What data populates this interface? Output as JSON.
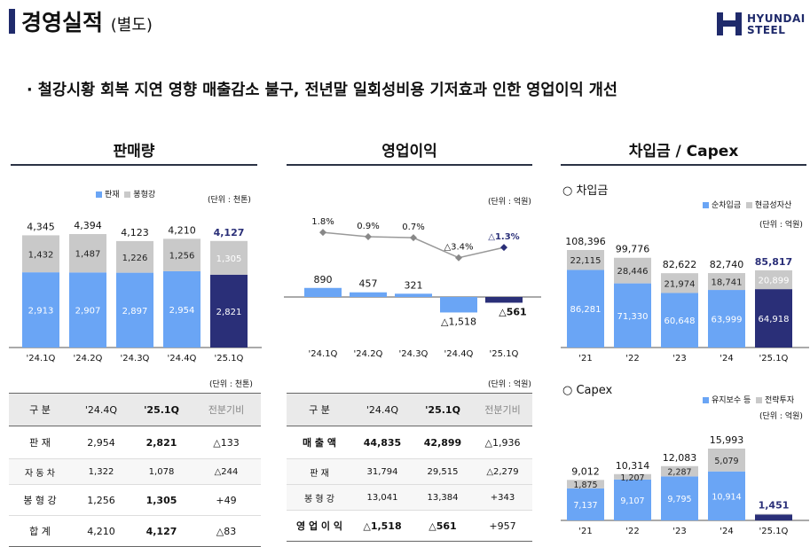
{
  "header": {
    "title": "경영실적",
    "subtitle": "(별도)",
    "logo_line1": "HYUNDAI",
    "logo_line2": "STEEL"
  },
  "headline": "· 철강시황 회복 지연 영향 매출감소 불구, 전년말 일회성비용 기저효과 인한 영업이익 개선",
  "colors": {
    "light_blue": "#6aa5f5",
    "gray": "#c9c9c9",
    "navy": "#2a2f78",
    "title_navy": "#1f2a6b"
  },
  "sales": {
    "title": "판매량",
    "legend": [
      "판재",
      "봉형강"
    ],
    "unit": "(단위 : 천톤)",
    "chart_data": {
      "type": "bar",
      "categories": [
        "'24.1Q",
        "'24.2Q",
        "'24.3Q",
        "'24.4Q",
        "'25.1Q"
      ],
      "series": [
        {
          "name": "판재",
          "values": [
            2913,
            2907,
            2897,
            2954,
            2821
          ]
        },
        {
          "name": "봉형강",
          "values": [
            1432,
            1487,
            1226,
            1256,
            1305
          ]
        }
      ],
      "totals": [
        4345,
        4394,
        4123,
        4210,
        4127
      ],
      "seg_labels": [
        [
          "2,913",
          "2,907",
          "2,897",
          "2,954",
          "2,821"
        ],
        [
          "1,432",
          "1,487",
          "1,226",
          "1,256",
          "1,305"
        ]
      ],
      "total_labels": [
        "4,345",
        "4,394",
        "4,123",
        "4,210",
        "4,127"
      ]
    },
    "table": {
      "unit": "(단위 : 천톤)",
      "headers": [
        "구 분",
        "'24.4Q",
        "'25.1Q",
        "전분기비"
      ],
      "rows": [
        [
          "판 재",
          "2,954",
          "2,821",
          "△133"
        ],
        [
          "자 동 차",
          "1,322",
          "1,078",
          "△244"
        ],
        [
          "봉 형 강",
          "1,256",
          "1,305",
          "+49"
        ],
        [
          "합 계",
          "4,210",
          "4,127",
          "△83"
        ]
      ]
    }
  },
  "op": {
    "title": "영업이익",
    "unit": "(단위 : 억원)",
    "chart_data": {
      "type": "bar",
      "categories": [
        "'24.1Q",
        "'24.2Q",
        "'24.3Q",
        "'24.4Q",
        "'25.1Q"
      ],
      "values": [
        890,
        457,
        321,
        -1518,
        -561
      ],
      "value_labels": [
        "890",
        "457",
        "321",
        "△1,518",
        "△561"
      ],
      "margin_values": [
        1.8,
        0.9,
        0.7,
        -3.4,
        -1.3
      ],
      "margin_labels": [
        "1.8%",
        "0.9%",
        "0.7%",
        "△3.4%",
        "△1.3%"
      ]
    },
    "table": {
      "unit": "(단위 : 억원)",
      "headers": [
        "구 분",
        "'24.4Q",
        "'25.1Q",
        "전분기비"
      ],
      "rows": [
        [
          "매 출 액",
          "44,835",
          "42,899",
          "△1,936"
        ],
        [
          "판 재",
          "31,794",
          "29,515",
          "△2,279"
        ],
        [
          "봉 형 강",
          "13,041",
          "13,384",
          "+343"
        ],
        [
          "영 업 이 익",
          "△1,518",
          "△561",
          "+957"
        ]
      ]
    }
  },
  "debt": {
    "title": "차입금 / Capex",
    "debt_label": "○ 차입금",
    "debt_legend": [
      "순차입금",
      "현금성자산"
    ],
    "unit": "(단위 : 억원)",
    "chart_data": {
      "type": "bar",
      "categories": [
        "'21",
        "'22",
        "'23",
        "'24",
        "'25.1Q"
      ],
      "series": [
        {
          "name": "순차입금",
          "values": [
            86281,
            71330,
            60648,
            63999,
            64918
          ]
        },
        {
          "name": "현금성자산",
          "values": [
            22115,
            28446,
            21974,
            18741,
            20899
          ]
        }
      ],
      "totals": [
        108396,
        99776,
        82622,
        82740,
        85817
      ],
      "seg_labels": [
        [
          "86,281",
          "71,330",
          "60,648",
          "63,999",
          "64,918"
        ],
        [
          "22,115",
          "28,446",
          "21,974",
          "18,741",
          "20,899"
        ]
      ],
      "total_labels": [
        "108,396",
        "99,776",
        "82,622",
        "82,740",
        "85,817"
      ]
    },
    "capex_label": "○ Capex",
    "capex_legend": [
      "유지보수 등",
      "전략투자"
    ],
    "capex_unit": "(단위 : 억원)",
    "capex_chart_data": {
      "type": "bar",
      "categories": [
        "'21",
        "'22",
        "'23",
        "'24",
        "'25.1Q"
      ],
      "series": [
        {
          "name": "유지보수 등",
          "values": [
            7137,
            9107,
            9795,
            10914,
            1300
          ]
        },
        {
          "name": "전략투자",
          "values": [
            1875,
            1207,
            2287,
            5079,
            151
          ]
        }
      ],
      "totals": [
        9012,
        10314,
        12083,
        15993,
        1451
      ],
      "seg_labels": [
        [
          "7,137",
          "9,107",
          "9,795",
          "10,914",
          ""
        ],
        [
          "1,875",
          "1,207",
          "2,287",
          "5,079",
          ""
        ]
      ],
      "total_labels": [
        "9,012",
        "10,314",
        "12,083",
        "15,993",
        "1,451"
      ]
    }
  }
}
